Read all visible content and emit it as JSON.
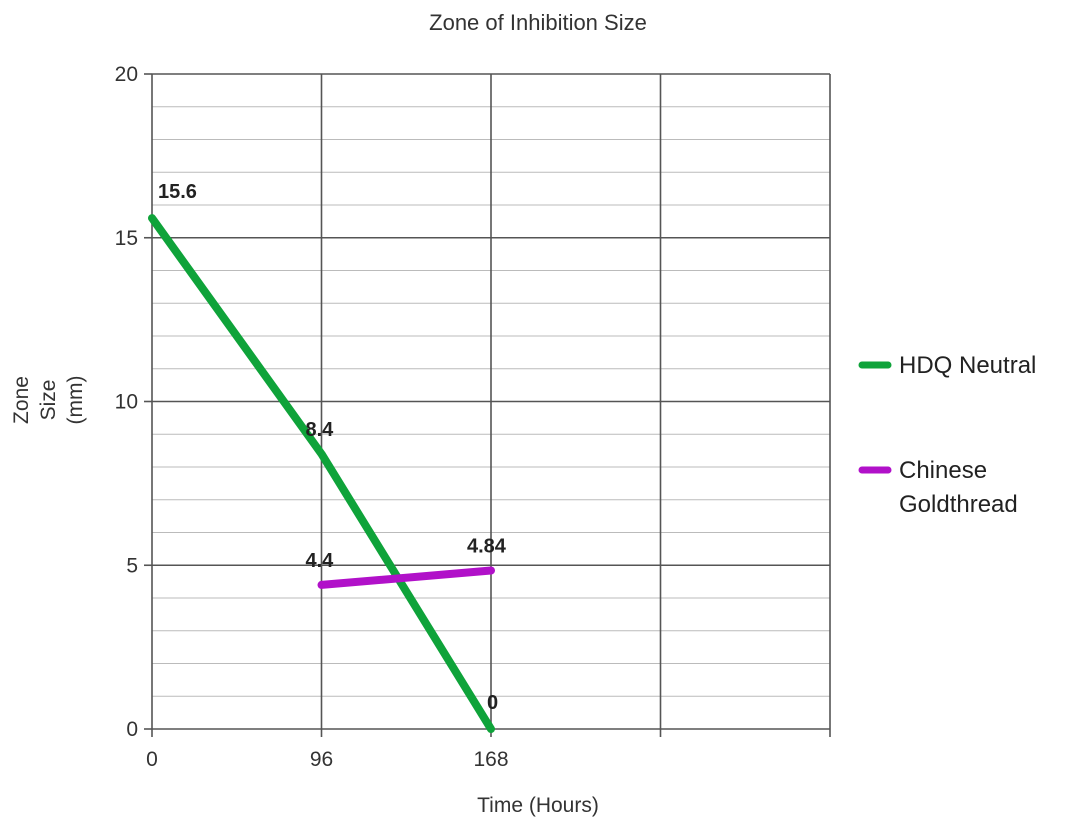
{
  "chart_data": {
    "type": "line",
    "title": "Zone of Inhibition Size",
    "xlabel": "Time (Hours)",
    "ylabel": [
      "Zone",
      "Size",
      "(mm)"
    ],
    "x_ticks": [
      "0",
      "96",
      "168"
    ],
    "y_ticks": [
      "0",
      "5",
      "10",
      "15",
      "20"
    ],
    "ylim": [
      0,
      20
    ],
    "grid": true,
    "legend_position": "right",
    "series": [
      {
        "name": "HDQ Neutral",
        "legend_lines": [
          "HDQ Neutral"
        ],
        "color": "#0fa33a",
        "x": [
          "0",
          "96",
          "168"
        ],
        "values": [
          15.6,
          8.4,
          0
        ],
        "labels": [
          "15.6",
          "8.4",
          "0"
        ]
      },
      {
        "name": "Chinese Goldthread",
        "legend_lines": [
          "Chinese",
          "Goldthread"
        ],
        "color": "#b111c9",
        "x": [
          "96",
          "168"
        ],
        "values": [
          4.4,
          4.84
        ],
        "labels": [
          "4.4",
          "4.84"
        ]
      }
    ]
  }
}
